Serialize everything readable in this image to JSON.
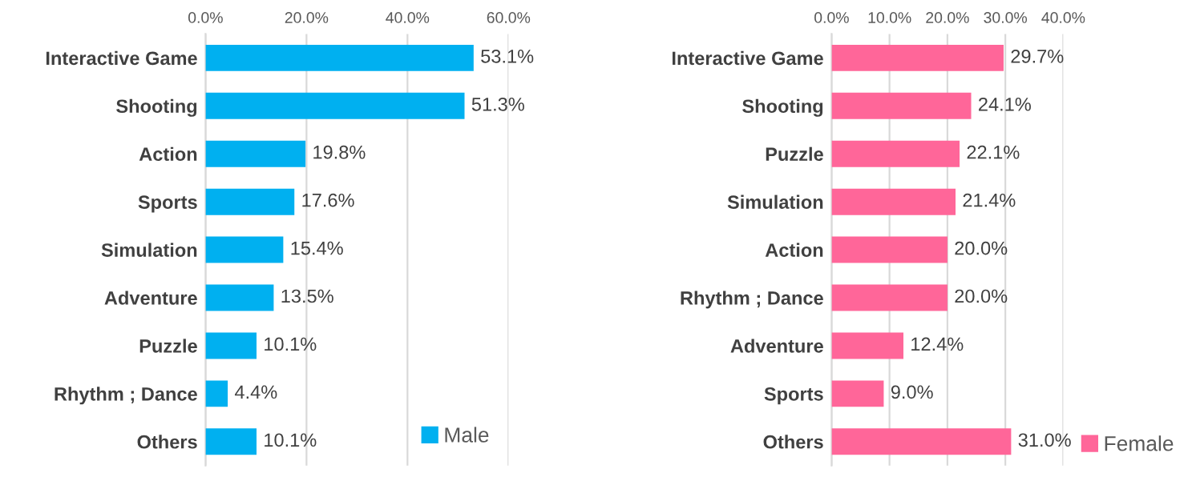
{
  "chart_data": [
    {
      "type": "bar",
      "orientation": "horizontal",
      "categories": [
        "Interactive Game",
        "Shooting",
        "Action",
        "Sports",
        "Simulation",
        "Adventure",
        "Puzzle",
        "Rhythm ; Dance",
        "Others"
      ],
      "series": [
        {
          "name": "Male",
          "color": "#00b0f0",
          "values": [
            53.1,
            51.3,
            19.8,
            17.6,
            15.4,
            13.5,
            10.1,
            4.4,
            10.1
          ]
        }
      ],
      "value_labels": [
        "53.1%",
        "51.3%",
        "19.8%",
        "17.6%",
        "15.4%",
        "13.5%",
        "10.1%",
        "4.4%",
        "10.1%"
      ],
      "xlim": [
        0,
        60
      ],
      "xticks": [
        {
          "value": 0,
          "label": "0.0%"
        },
        {
          "value": 20,
          "label": "20.0%"
        },
        {
          "value": 40,
          "label": "40.0%"
        },
        {
          "value": 60,
          "label": "60.0%"
        }
      ],
      "grid": "x",
      "legend": "bottom right"
    },
    {
      "type": "bar",
      "orientation": "horizontal",
      "categories": [
        "Interactive Game",
        "Shooting",
        "Puzzle",
        "Simulation",
        "Action",
        "Rhythm ; Dance",
        "Adventure",
        "Sports",
        "Others"
      ],
      "series": [
        {
          "name": "Female",
          "color": "#ff6699",
          "values": [
            29.7,
            24.1,
            22.1,
            21.4,
            20.0,
            20.0,
            12.4,
            9.0,
            31.0
          ]
        }
      ],
      "value_labels": [
        "29.7%",
        "24.1%",
        "22.1%",
        "21.4%",
        "20.0%",
        "20.0%",
        "12.4%",
        "9.0%",
        "31.0%"
      ],
      "xlim": [
        0,
        40
      ],
      "xticks": [
        {
          "value": 0,
          "label": "0.0%"
        },
        {
          "value": 10,
          "label": "10.0%"
        },
        {
          "value": 20,
          "label": "20.0%"
        },
        {
          "value": 30,
          "label": "30.0%"
        },
        {
          "value": 40,
          "label": "40.0%"
        }
      ],
      "grid": "x",
      "legend": "bottom right"
    }
  ]
}
